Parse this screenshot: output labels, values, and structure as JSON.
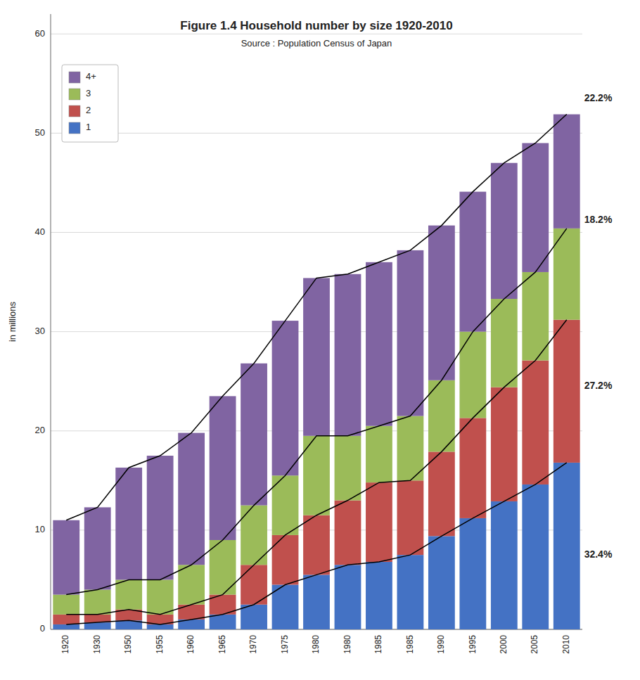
{
  "chart_data": {
    "type": "bar",
    "stacked": true,
    "title": "Figure 1.4 Household number by size 1920-2010",
    "subtitle": "Source : Population Census of Japan",
    "ylabel": "in millions",
    "categories": [
      "1920",
      "1930",
      "1950",
      "1955",
      "1960",
      "1965",
      "1970",
      "1975",
      "1980",
      "1980",
      "1985",
      "1985",
      "1990",
      "1995",
      "2000",
      "2005",
      "2010"
    ],
    "series": [
      {
        "name": "1",
        "color": "#4472C4",
        "values": [
          0.5,
          0.7,
          0.9,
          0.5,
          1.0,
          1.5,
          2.5,
          4.5,
          5.5,
          6.5,
          6.8,
          7.5,
          9.4,
          11.2,
          12.9,
          14.6,
          16.8
        ]
      },
      {
        "name": "2",
        "color": "#C0504D",
        "values": [
          1.0,
          0.8,
          1.1,
          1.0,
          1.5,
          2.0,
          4.0,
          5.0,
          6.0,
          6.5,
          8.0,
          7.5,
          8.5,
          10.1,
          11.5,
          12.5,
          14.4
        ]
      },
      {
        "name": "3",
        "color": "#9BBB59",
        "values": [
          2.0,
          2.5,
          3.0,
          3.5,
          4.0,
          5.5,
          6.0,
          6.0,
          8.0,
          6.5,
          5.7,
          6.5,
          7.2,
          8.7,
          8.9,
          8.9,
          9.2
        ]
      },
      {
        "name": "4+",
        "color": "#8064A2",
        "values": [
          7.5,
          8.3,
          11.3,
          12.5,
          13.3,
          14.5,
          14.3,
          15.6,
          15.9,
          16.3,
          16.5,
          16.7,
          15.6,
          14.1,
          13.7,
          13.0,
          11.5
        ]
      }
    ],
    "annotations": [
      {
        "text": "22.2%",
        "y": 53.5
      },
      {
        "text": "18.2%",
        "y": 41.2
      },
      {
        "text": "27.2%",
        "y": 24.5
      },
      {
        "text": "32.4%",
        "y": 7.5
      }
    ],
    "ylim": [
      0,
      62
    ],
    "yticks": [
      0,
      10,
      20,
      30,
      40,
      50,
      60
    ],
    "grid": true,
    "legend": "upper left"
  }
}
